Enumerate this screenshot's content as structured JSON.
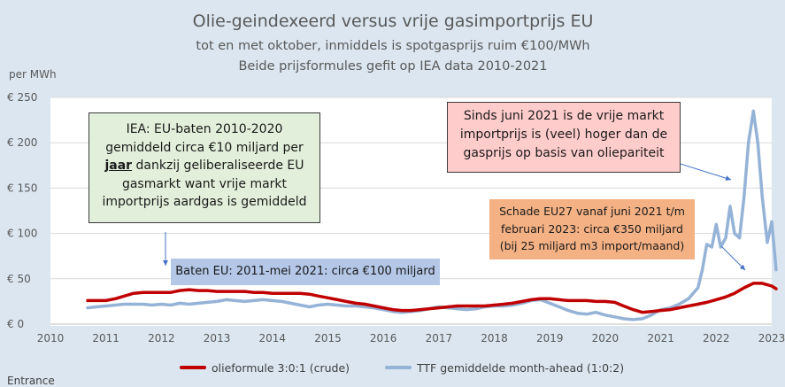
{
  "chart_data": {
    "type": "line",
    "title": "Olie-geindexeerd versus vrije gasimportprijs EU",
    "subtitle": [
      "tot en met oktober, inmiddels is spotgasprijs ruim €100/MWh",
      "Beide prijsformules gefit op IEA data 2010-2021"
    ],
    "ylabel": "per MWh",
    "xlim": [
      2010,
      2023
    ],
    "ylim": [
      0,
      250
    ],
    "x_ticks": [
      "2010",
      "2011",
      "2012",
      "2013",
      "2014",
      "2015",
      "2016",
      "2017",
      "2018",
      "2019",
      "2020",
      "2021",
      "2022",
      "2023"
    ],
    "y_ticks": [
      "€ 0",
      "€ 50",
      "€ 100",
      "€ 150",
      "€ 200",
      "€ 250"
    ],
    "y_tick_values": [
      0,
      50,
      100,
      150,
      200,
      250
    ],
    "grid": "horizontal",
    "legend_position": "bottom",
    "series": [
      {
        "name": "olieformule 3:0:1  (crude)",
        "color": "#c00000",
        "points": [
          [
            2010.67,
            26
          ],
          [
            2010.83,
            26
          ],
          [
            2011.0,
            26
          ],
          [
            2011.17,
            28
          ],
          [
            2011.33,
            31
          ],
          [
            2011.5,
            34
          ],
          [
            2011.67,
            35
          ],
          [
            2011.83,
            35
          ],
          [
            2012.0,
            35
          ],
          [
            2012.17,
            35
          ],
          [
            2012.33,
            37
          ],
          [
            2012.5,
            38
          ],
          [
            2012.67,
            37
          ],
          [
            2012.83,
            37
          ],
          [
            2013.0,
            36
          ],
          [
            2013.17,
            36
          ],
          [
            2013.33,
            36
          ],
          [
            2013.5,
            36
          ],
          [
            2013.67,
            35
          ],
          [
            2013.83,
            35
          ],
          [
            2014.0,
            34
          ],
          [
            2014.17,
            34
          ],
          [
            2014.33,
            34
          ],
          [
            2014.5,
            34
          ],
          [
            2014.67,
            33
          ],
          [
            2014.83,
            31
          ],
          [
            2015.0,
            29
          ],
          [
            2015.17,
            27
          ],
          [
            2015.33,
            25
          ],
          [
            2015.5,
            23
          ],
          [
            2015.67,
            22
          ],
          [
            2015.83,
            20
          ],
          [
            2016.0,
            18
          ],
          [
            2016.17,
            16
          ],
          [
            2016.33,
            15
          ],
          [
            2016.5,
            15
          ],
          [
            2016.67,
            16
          ],
          [
            2016.83,
            17
          ],
          [
            2017.0,
            18
          ],
          [
            2017.17,
            19
          ],
          [
            2017.33,
            20
          ],
          [
            2017.5,
            20
          ],
          [
            2017.67,
            20
          ],
          [
            2017.83,
            20
          ],
          [
            2018.0,
            21
          ],
          [
            2018.17,
            22
          ],
          [
            2018.33,
            23
          ],
          [
            2018.5,
            25
          ],
          [
            2018.67,
            27
          ],
          [
            2018.83,
            28
          ],
          [
            2019.0,
            28
          ],
          [
            2019.17,
            27
          ],
          [
            2019.33,
            26
          ],
          [
            2019.5,
            26
          ],
          [
            2019.67,
            26
          ],
          [
            2019.83,
            25
          ],
          [
            2020.0,
            25
          ],
          [
            2020.17,
            24
          ],
          [
            2020.33,
            20
          ],
          [
            2020.5,
            16
          ],
          [
            2020.67,
            13
          ],
          [
            2020.83,
            14
          ],
          [
            2021.0,
            15
          ],
          [
            2021.17,
            16
          ],
          [
            2021.33,
            18
          ],
          [
            2021.5,
            20
          ],
          [
            2021.67,
            22
          ],
          [
            2021.83,
            24
          ],
          [
            2022.0,
            27
          ],
          [
            2022.17,
            30
          ],
          [
            2022.33,
            34
          ],
          [
            2022.5,
            40
          ],
          [
            2022.67,
            45
          ],
          [
            2022.83,
            45
          ],
          [
            2023.0,
            42
          ],
          [
            2023.08,
            39
          ]
        ]
      },
      {
        "name": "TTF gemiddelde month-ahead (1:0:2)",
        "color": "#95b3d7",
        "points": [
          [
            2010.67,
            18
          ],
          [
            2010.83,
            19
          ],
          [
            2011.0,
            20
          ],
          [
            2011.17,
            21
          ],
          [
            2011.33,
            22
          ],
          [
            2011.5,
            22
          ],
          [
            2011.67,
            22
          ],
          [
            2011.83,
            21
          ],
          [
            2012.0,
            22
          ],
          [
            2012.17,
            21
          ],
          [
            2012.33,
            23
          ],
          [
            2012.5,
            22
          ],
          [
            2012.67,
            23
          ],
          [
            2012.83,
            24
          ],
          [
            2013.0,
            25
          ],
          [
            2013.17,
            27
          ],
          [
            2013.33,
            26
          ],
          [
            2013.5,
            25
          ],
          [
            2013.67,
            26
          ],
          [
            2013.83,
            27
          ],
          [
            2014.0,
            26
          ],
          [
            2014.17,
            25
          ],
          [
            2014.33,
            23
          ],
          [
            2014.5,
            21
          ],
          [
            2014.67,
            19
          ],
          [
            2014.83,
            21
          ],
          [
            2015.0,
            22
          ],
          [
            2015.17,
            21
          ],
          [
            2015.33,
            20
          ],
          [
            2015.5,
            20
          ],
          [
            2015.67,
            19
          ],
          [
            2015.83,
            18
          ],
          [
            2016.0,
            16
          ],
          [
            2016.17,
            14
          ],
          [
            2016.33,
            13
          ],
          [
            2016.5,
            14
          ],
          [
            2016.67,
            15
          ],
          [
            2016.83,
            17
          ],
          [
            2017.0,
            19
          ],
          [
            2017.17,
            18
          ],
          [
            2017.33,
            17
          ],
          [
            2017.5,
            16
          ],
          [
            2017.67,
            17
          ],
          [
            2017.83,
            19
          ],
          [
            2018.0,
            20
          ],
          [
            2018.17,
            20
          ],
          [
            2018.33,
            21
          ],
          [
            2018.5,
            23
          ],
          [
            2018.67,
            26
          ],
          [
            2018.83,
            27
          ],
          [
            2019.0,
            23
          ],
          [
            2019.17,
            19
          ],
          [
            2019.33,
            15
          ],
          [
            2019.5,
            12
          ],
          [
            2019.67,
            11
          ],
          [
            2019.83,
            13
          ],
          [
            2020.0,
            10
          ],
          [
            2020.17,
            8
          ],
          [
            2020.33,
            6
          ],
          [
            2020.5,
            5
          ],
          [
            2020.67,
            6
          ],
          [
            2020.83,
            10
          ],
          [
            2021.0,
            16
          ],
          [
            2021.17,
            18
          ],
          [
            2021.33,
            22
          ],
          [
            2021.5,
            28
          ],
          [
            2021.67,
            40
          ],
          [
            2021.75,
            60
          ],
          [
            2021.83,
            88
          ],
          [
            2021.92,
            85
          ],
          [
            2022.0,
            110
          ],
          [
            2022.08,
            85
          ],
          [
            2022.17,
            95
          ],
          [
            2022.25,
            130
          ],
          [
            2022.33,
            100
          ],
          [
            2022.42,
            95
          ],
          [
            2022.5,
            140
          ],
          [
            2022.58,
            200
          ],
          [
            2022.67,
            235
          ],
          [
            2022.75,
            200
          ],
          [
            2022.83,
            140
          ],
          [
            2022.92,
            90
          ],
          [
            2023.0,
            113
          ],
          [
            2023.08,
            60
          ]
        ]
      }
    ],
    "annotations": [
      {
        "lines": [
          "IEA: EU-baten 2010-2020",
          "gemiddeld circa €10 miljard per",
          "jaar",
          " dankzij geliberaliseerde EU",
          "gasmarkt want vrije markt",
          "importprijs aardgas is gemiddeld"
        ]
      },
      {
        "text": "Baten EU: 2011-mei 2021: circa €100 miljard"
      },
      {
        "lines": [
          "Sinds juni 2021 is de vrije markt",
          "importprijs is (veel) hoger dan de",
          "gasprijs op basis van oliepariteit"
        ]
      },
      {
        "lines": [
          "Schade EU27 vanaf juni 2021 t/m",
          "februari 2023: circa €350 miljard",
          "(bij 25 miljard m3 import/maand)"
        ]
      }
    ]
  },
  "footer": "Entrance"
}
